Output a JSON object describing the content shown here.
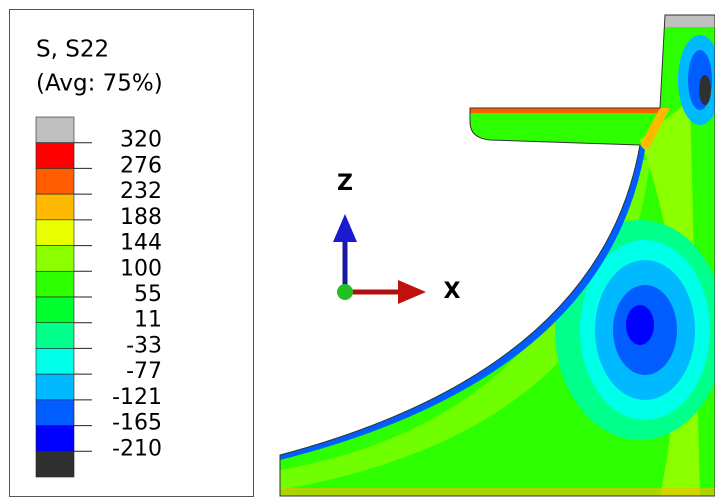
{
  "legend": {
    "title": "S, S22",
    "subtitle": "(Avg: 75%)",
    "levels": [
      320,
      276,
      232,
      188,
      144,
      100,
      55,
      11,
      -33,
      -77,
      -121,
      -165,
      -210
    ],
    "band_colors": [
      "#c0c0c0",
      "#ff0000",
      "#ff5d00",
      "#ffb900",
      "#e8ff00",
      "#8bff00",
      "#2eff00",
      "#00ff2e",
      "#00ff8b",
      "#00ffe8",
      "#00b9ff",
      "#005dff",
      "#0000ff",
      "#303030"
    ]
  },
  "triad": {
    "z_label": "Z",
    "x_label": "X"
  }
}
